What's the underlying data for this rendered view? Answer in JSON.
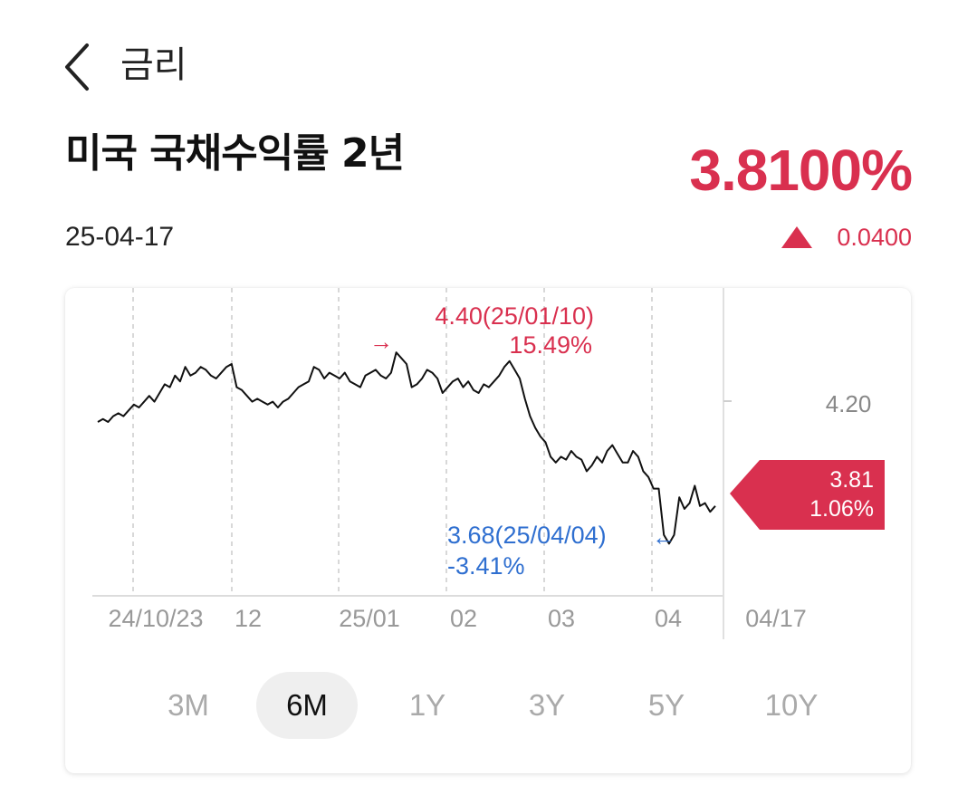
{
  "header": {
    "back_icon": "chevron-left-icon",
    "title": "금리"
  },
  "instrument": {
    "name": "미국 국채수익률 2년",
    "price": "3.8100%",
    "date": "25-04-17",
    "change_icon": "triangle-up-icon",
    "change": "0.0400",
    "accent_color": "#d9304f",
    "low_color": "#2f6fd0"
  },
  "chart_data": {
    "type": "line",
    "x_start": "24/10/23",
    "x_end": "04/17",
    "x_tick_labels": [
      "24/10/23",
      "12",
      "25/01",
      "02",
      "03",
      "04",
      "04/17"
    ],
    "y_tick_labels": [
      "4.20"
    ],
    "series": [
      {
        "values": [
          4.1,
          4.11,
          4.1,
          4.12,
          4.13,
          4.12,
          4.14,
          4.16,
          4.15,
          4.17,
          4.19,
          4.17,
          4.2,
          4.23,
          4.22,
          4.26,
          4.24,
          4.29,
          4.26,
          4.27,
          4.29,
          4.28,
          4.26,
          4.25,
          4.27,
          4.29,
          4.3,
          4.22,
          4.21,
          4.19,
          4.17,
          4.18,
          4.17,
          4.16,
          4.17,
          4.15,
          4.17,
          4.18,
          4.2,
          4.22,
          4.23,
          4.24,
          4.29,
          4.28,
          4.25,
          4.27,
          4.26,
          4.25,
          4.27,
          4.24,
          4.23,
          4.22,
          4.26,
          4.27,
          4.28,
          4.26,
          4.25,
          4.27,
          4.34,
          4.32,
          4.3,
          4.22,
          4.23,
          4.25,
          4.28,
          4.27,
          4.25,
          4.2,
          4.22,
          4.24,
          4.25,
          4.22,
          4.24,
          4.21,
          4.2,
          4.23,
          4.22,
          4.24,
          4.26,
          4.29,
          4.31,
          4.28,
          4.25,
          4.18,
          4.12,
          4.08,
          4.05,
          4.03,
          3.98,
          3.96,
          3.98,
          3.97,
          4.0,
          3.98,
          3.97,
          3.93,
          3.95,
          3.98,
          3.96,
          4.0,
          4.02,
          3.99,
          3.96,
          3.96,
          4.0,
          3.98,
          3.93,
          3.91,
          3.87,
          3.87,
          3.71,
          3.68,
          3.71,
          3.84,
          3.8,
          3.82,
          3.88,
          3.81,
          3.82,
          3.79,
          3.81
        ],
        "line_color": "#111111"
      }
    ],
    "current": {
      "value": "3.81",
      "change_pct": "1.06%"
    },
    "high": {
      "label": "4.40(25/01/10)",
      "change_pct": "15.49%",
      "arrow": "→"
    },
    "low": {
      "label": "3.68(25/04/04)",
      "change_pct": "-3.41%",
      "arrow": "←"
    },
    "grid": true
  },
  "periods": [
    {
      "label": "3M",
      "active": false
    },
    {
      "label": "6M",
      "active": true
    },
    {
      "label": "1Y",
      "active": false
    },
    {
      "label": "3Y",
      "active": false
    },
    {
      "label": "5Y",
      "active": false
    },
    {
      "label": "10Y",
      "active": false
    }
  ]
}
